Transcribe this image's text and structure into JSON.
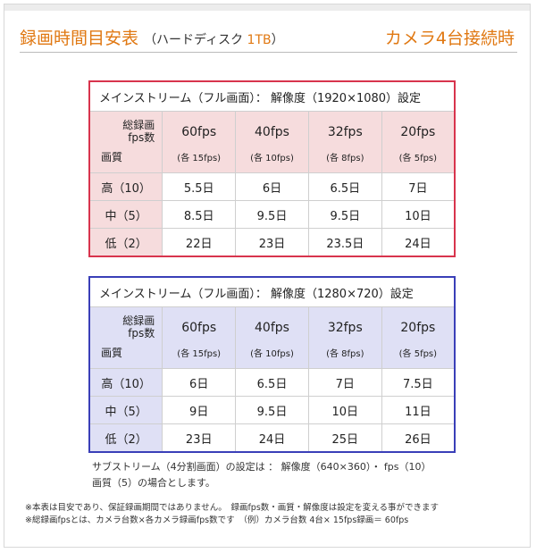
{
  "header": {
    "title_main": "録画時間目安表",
    "title_sub_prefix": "（ハードディスク ",
    "title_sub_accent": "1TB",
    "title_sub_suffix": "）",
    "right_title": "カメラ4台接続時"
  },
  "tables": [
    {
      "caption": "メインストリーム（フル画面）： 解像度（1920×1080）設定",
      "corner_top_line1": "総録画",
      "corner_top_line2": "fps数",
      "corner_bottom": "画質",
      "columns": [
        {
          "fps": "60fps",
          "per": "(各 15fps)"
        },
        {
          "fps": "40fps",
          "per": "(各 10fps)"
        },
        {
          "fps": "32fps",
          "per": "(各 8fps)"
        },
        {
          "fps": "20fps",
          "per": "(各 5fps)"
        }
      ],
      "rows": [
        {
          "label": "高（10）",
          "values": [
            "5.5日",
            "6日",
            "6.5日",
            "7日"
          ]
        },
        {
          "label": "中（5）",
          "values": [
            "8.5日",
            "9.5日",
            "9.5日",
            "10日"
          ]
        },
        {
          "label": "低（2）",
          "values": [
            "22日",
            "23日",
            "23.5日",
            "24日"
          ]
        }
      ]
    },
    {
      "caption": "メインストリーム（フル画面）： 解像度（1280×720）設定",
      "corner_top_line1": "総録画",
      "corner_top_line2": "fps数",
      "corner_bottom": "画質",
      "columns": [
        {
          "fps": "60fps",
          "per": "(各 15fps)"
        },
        {
          "fps": "40fps",
          "per": "(各 10fps)"
        },
        {
          "fps": "32fps",
          "per": "(各 8fps)"
        },
        {
          "fps": "20fps",
          "per": "(各 5fps)"
        }
      ],
      "rows": [
        {
          "label": "高（10）",
          "values": [
            "6日",
            "6.5日",
            "7日",
            "7.5日"
          ]
        },
        {
          "label": "中（5）",
          "values": [
            "9日",
            "9.5日",
            "10日",
            "11日"
          ]
        },
        {
          "label": "低（2）",
          "values": [
            "23日",
            "24日",
            "25日",
            "26日"
          ]
        }
      ]
    }
  ],
  "note_sub": {
    "line1": "サブストリーム（4分割画面）の設定は ： 解像度（640×360）・ fps（10）",
    "line2": "画質（5）の場合とします。"
  },
  "footnotes": {
    "line1": "※本表は目安であり、保証録画期間ではありません。　録画fps数・画質・解像度は設定を変える事ができます",
    "line2": "※総録画fpsとは、カメラ台数×各カメラ録画fps数です　（例）カメラ台数 4台× 15fps録画＝ 60fps"
  },
  "colors": {
    "accent_orange": "#e07812",
    "table1_border": "#d8344d",
    "table1_fill": "#f6dcdd",
    "table2_border": "#3a3fb8",
    "table2_fill": "#dfe0f5"
  }
}
